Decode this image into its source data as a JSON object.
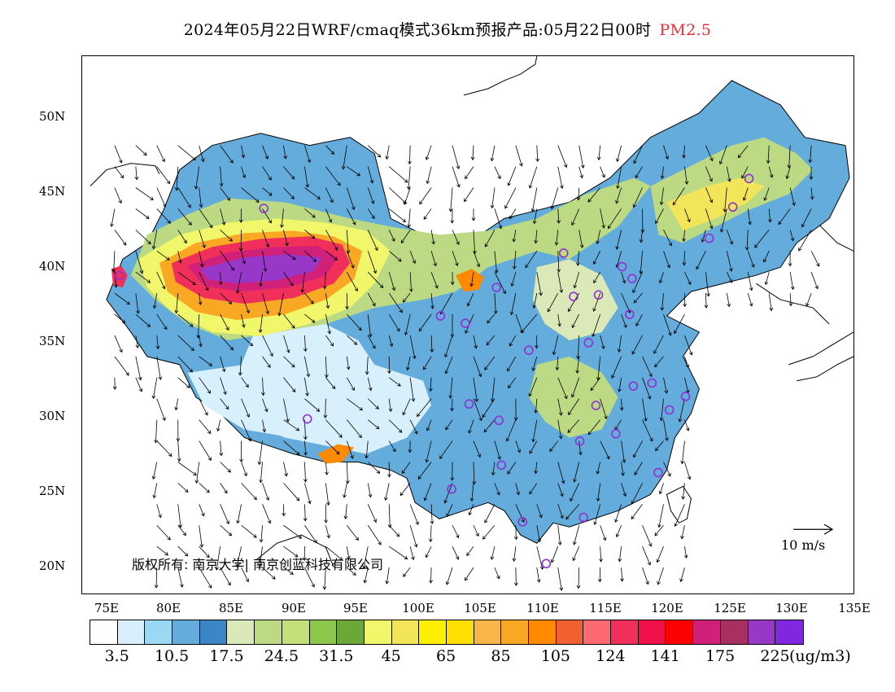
{
  "title": {
    "main": "2024年05月22日WRF/cmaq模式36km预报产品:05月22日00时",
    "pollutant": "PM2.5",
    "pollutant_color": "#e8303a"
  },
  "axes": {
    "latitude_labels": [
      "50N",
      "45N",
      "40N",
      "35N",
      "30N",
      "25N",
      "20N"
    ],
    "longitude_labels": [
      "75E",
      "80E",
      "85E",
      "90E",
      "95E",
      "100E",
      "105E",
      "110E",
      "115E",
      "120E",
      "125E",
      "130E",
      "135E"
    ]
  },
  "copyright": "版权所有: 南京大学| 南京创蓝科技有限公司",
  "wind_reference": "10 m/s",
  "colorbar": {
    "colors": [
      "#ffffff",
      "#d8f0fb",
      "#9ad8f4",
      "#63acdb",
      "#3b86c4",
      "#dbe9b8",
      "#bcd984",
      "#c3e07a",
      "#8cc84a",
      "#6ca838",
      "#f0f76a",
      "#f2e55a",
      "#ffef00",
      "#ffe000",
      "#f8b648",
      "#f9a823",
      "#ff8a00",
      "#f06030",
      "#ff6a70",
      "#f0305a",
      "#f0104a",
      "#ff0000",
      "#d0207a",
      "#a83060",
      "#9838c8",
      "#8028e0"
    ],
    "labels": [
      "3.5",
      "10.5",
      "17.5",
      "24.5",
      "31.5",
      "45",
      "65",
      "85",
      "105",
      "124",
      "141",
      "175",
      "225"
    ],
    "unit": "(ug/m3)"
  },
  "map": {
    "projection": "lat-lon",
    "lon_range": [
      73,
      135
    ],
    "lat_range": [
      18,
      54
    ],
    "city_markers_color": "#9030d0",
    "city_markers": [
      [
        76,
        39.3
      ],
      [
        87.6,
        43.8
      ],
      [
        91.1,
        29.7
      ],
      [
        101.8,
        36.6
      ],
      [
        103.8,
        36.1
      ],
      [
        106.3,
        38.5
      ],
      [
        108.9,
        34.3
      ],
      [
        111.7,
        40.8
      ],
      [
        112.5,
        37.9
      ],
      [
        114.5,
        38.0
      ],
      [
        116.4,
        39.9
      ],
      [
        117.2,
        39.1
      ],
      [
        113.7,
        34.8
      ],
      [
        117.0,
        36.7
      ],
      [
        114.3,
        30.6
      ],
      [
        117.3,
        31.9
      ],
      [
        118.8,
        32.1
      ],
      [
        120.2,
        30.3
      ],
      [
        121.5,
        31.2
      ],
      [
        113.0,
        28.2
      ],
      [
        115.9,
        28.7
      ],
      [
        119.3,
        26.1
      ],
      [
        113.3,
        23.1
      ],
      [
        108.4,
        22.8
      ],
      [
        110.3,
        20.0
      ],
      [
        106.7,
        26.6
      ],
      [
        102.7,
        25.0
      ],
      [
        104.1,
        30.7
      ],
      [
        106.5,
        29.6
      ],
      [
        123.4,
        41.8
      ],
      [
        125.3,
        43.9
      ],
      [
        126.6,
        45.8
      ]
    ]
  }
}
